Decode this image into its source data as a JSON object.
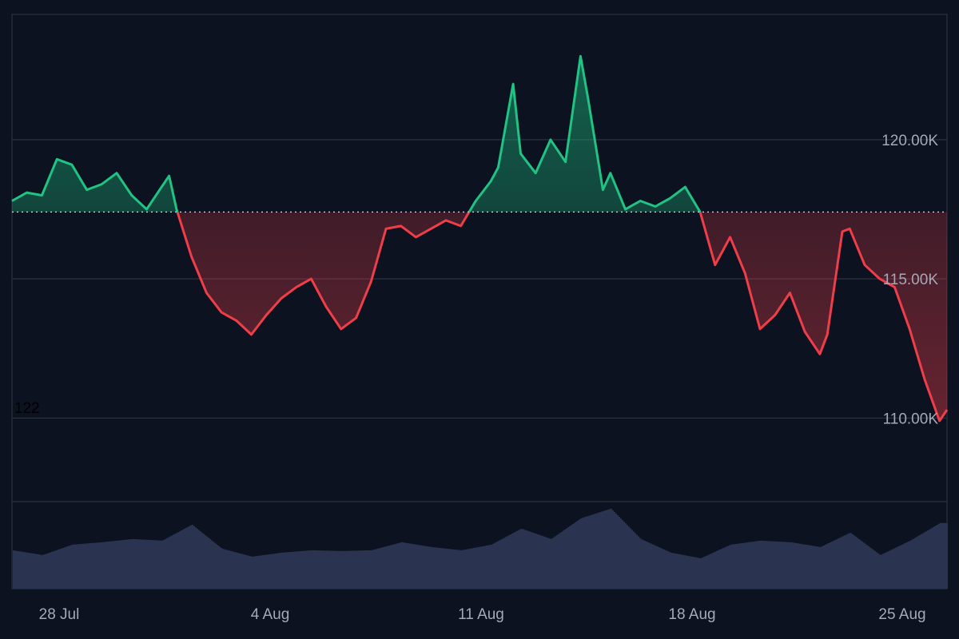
{
  "colors": {
    "background": "#0c121f",
    "up": "#1fc384",
    "down": "#ef3e4a",
    "volume": "#2a3350",
    "grid": "#2a3142",
    "baseline": "#c8ccd6",
    "label": "#a3a9b7"
  },
  "overlay_text": "122",
  "chart_data": {
    "type": "area",
    "subtype": "baseline-area-with-volume",
    "title": "",
    "xlabel": "",
    "ylabel": "",
    "x_ticks": [
      "28 Jul",
      "4 Aug",
      "11 Aug",
      "18 Aug",
      "25 Aug"
    ],
    "y_ticks": [
      {
        "value": 110000,
        "label": "110.00K"
      },
      {
        "value": 115000,
        "label": "115.00K"
      },
      {
        "value": 120000,
        "label": "120.00K"
      }
    ],
    "baseline_value": 117400,
    "ylim": [
      107000,
      124500
    ],
    "grid": true,
    "legend": "none",
    "x_range": [
      "2025-07-26",
      "2025-08-26T06:00"
    ],
    "series": [
      {
        "x": [
          "2025-07-26",
          "2025-07-26T12:00",
          "2025-07-27",
          "2025-07-27T12:00",
          "2025-07-28",
          "2025-07-28T12:00",
          "2025-07-29",
          "2025-07-29T12:00",
          "2025-07-30",
          "2025-07-30T12:00",
          "2025-07-31",
          "2025-07-31T06:00",
          "2025-07-31T12:00",
          "2025-08-01",
          "2025-08-01T12:00",
          "2025-08-02",
          "2025-08-02T12:00",
          "2025-08-03",
          "2025-08-03T12:00",
          "2025-08-04",
          "2025-08-04T12:00",
          "2025-08-05",
          "2025-08-05T12:00",
          "2025-08-06",
          "2025-08-06T12:00",
          "2025-08-07",
          "2025-08-07T12:00",
          "2025-08-08",
          "2025-08-08T12:00",
          "2025-08-09",
          "2025-08-09T12:00",
          "2025-08-10",
          "2025-08-10T12:00",
          "2025-08-11",
          "2025-08-11T06:00",
          "2025-08-11T18:00",
          "2025-08-12",
          "2025-08-12T12:00",
          "2025-08-13",
          "2025-08-13T12:00",
          "2025-08-14",
          "2025-08-14T06:00",
          "2025-08-14T18:00",
          "2025-08-15",
          "2025-08-15T12:00",
          "2025-08-16",
          "2025-08-16T12:00",
          "2025-08-17",
          "2025-08-17T12:00",
          "2025-08-18",
          "2025-08-18T12:00",
          "2025-08-19",
          "2025-08-19T12:00",
          "2025-08-20",
          "2025-08-20T12:00",
          "2025-08-21",
          "2025-08-21T12:00",
          "2025-08-22",
          "2025-08-22T06:00",
          "2025-08-22T18:00",
          "2025-08-23",
          "2025-08-23T12:00",
          "2025-08-24",
          "2025-08-24T12:00",
          "2025-08-25",
          "2025-08-25T12:00",
          "2025-08-26",
          "2025-08-26T06:00"
        ],
        "values": [
          117800,
          118100,
          118000,
          119300,
          119100,
          118200,
          118400,
          118800,
          118000,
          117500,
          118300,
          118700,
          117500,
          115800,
          114500,
          113800,
          113500,
          113000,
          113700,
          114300,
          114700,
          115000,
          114000,
          113200,
          113600,
          114900,
          116800,
          116900,
          116500,
          116800,
          117100,
          116900,
          117800,
          118500,
          119000,
          122000,
          119500,
          118800,
          120000,
          119200,
          123000,
          121500,
          118200,
          118800,
          117500,
          117800,
          117600,
          117900,
          118300,
          117400,
          115500,
          116500,
          115200,
          113200,
          113700,
          114500,
          113100,
          112300,
          113000,
          116700,
          116800,
          115500,
          115000,
          114700,
          113200,
          111400,
          109900,
          110300
        ]
      }
    ],
    "volume": {
      "x": [
        "2025-07-26",
        "2025-07-27",
        "2025-07-28",
        "2025-07-29",
        "2025-07-30",
        "2025-07-31",
        "2025-08-01",
        "2025-08-02",
        "2025-08-03",
        "2025-08-04",
        "2025-08-05",
        "2025-08-06",
        "2025-08-07",
        "2025-08-08",
        "2025-08-09",
        "2025-08-10",
        "2025-08-11",
        "2025-08-12",
        "2025-08-13",
        "2025-08-14",
        "2025-08-15",
        "2025-08-16",
        "2025-08-17",
        "2025-08-18",
        "2025-08-19",
        "2025-08-20",
        "2025-08-21",
        "2025-08-22",
        "2025-08-23",
        "2025-08-24",
        "2025-08-25",
        "2025-08-26"
      ],
      "values": [
        0.48,
        0.42,
        0.55,
        0.58,
        0.62,
        0.6,
        0.8,
        0.5,
        0.4,
        0.45,
        0.48,
        0.47,
        0.48,
        0.58,
        0.52,
        0.48,
        0.55,
        0.75,
        0.62,
        0.88,
        1.0,
        0.62,
        0.45,
        0.38,
        0.55,
        0.6,
        0.58,
        0.52,
        0.7,
        0.42,
        0.6,
        0.82
      ]
    }
  }
}
